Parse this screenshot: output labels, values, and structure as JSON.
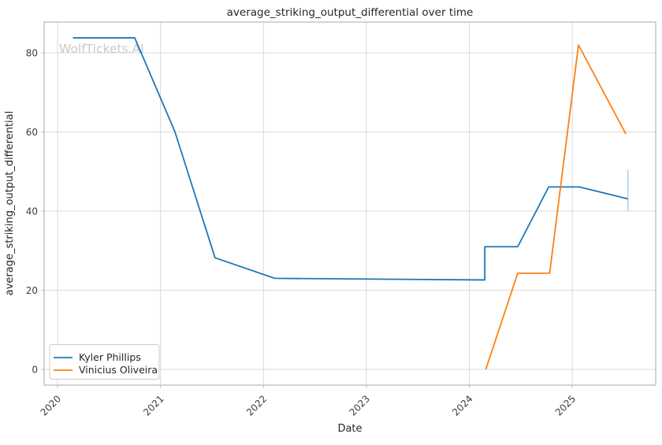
{
  "watermark": "WolfTickets.AI",
  "chart_data": {
    "type": "line",
    "title": "average_striking_output_differential over time",
    "xlabel": "Date",
    "ylabel": "average_striking_output_differential",
    "xlim": [
      2019.87,
      2025.81
    ],
    "ylim": [
      -4.0,
      87.8
    ],
    "x_ticks": [
      2020,
      2021,
      2022,
      2023,
      2024,
      2025
    ],
    "x_tick_labels": [
      "2020",
      "2021",
      "2022",
      "2023",
      "2024",
      "2025"
    ],
    "y_ticks": [
      0,
      20,
      40,
      60,
      80
    ],
    "y_tick_labels": [
      "0",
      "20",
      "40",
      "60",
      "80"
    ],
    "grid": true,
    "legend_position": "lower left",
    "colors": {
      "grid": "#d9d9d9",
      "spine": "#b8b8b8",
      "tick_label": "#3d3d3d",
      "text": "#262626",
      "watermark": "#c9c9c9",
      "background": "#ffffff",
      "legend_border": "#cccccc"
    },
    "series": [
      {
        "name": "Kyler Phillips",
        "color": "#1f77b4",
        "points": [
          [
            2020.15,
            83.8
          ],
          [
            2020.75,
            83.8
          ],
          [
            2021.14,
            60.1
          ],
          [
            2021.53,
            28.2
          ],
          [
            2022.11,
            23.0
          ],
          [
            2024.15,
            22.6
          ],
          [
            2024.15,
            31.0
          ],
          [
            2024.47,
            31.0
          ],
          [
            2024.77,
            46.1
          ],
          [
            2025.07,
            46.1
          ],
          [
            2025.54,
            43.1
          ]
        ],
        "error_bars": [
          {
            "x": 2025.54,
            "low": 39.9,
            "high": 50.5,
            "color": "#a3c6e3"
          }
        ]
      },
      {
        "name": "Vinicius Oliveira",
        "color": "#ff7f0e",
        "points": [
          [
            2024.16,
            0.0
          ],
          [
            2024.47,
            24.3
          ],
          [
            2024.78,
            24.3
          ],
          [
            2025.06,
            82.0
          ],
          [
            2025.52,
            59.5
          ]
        ],
        "error_bars": []
      }
    ]
  }
}
